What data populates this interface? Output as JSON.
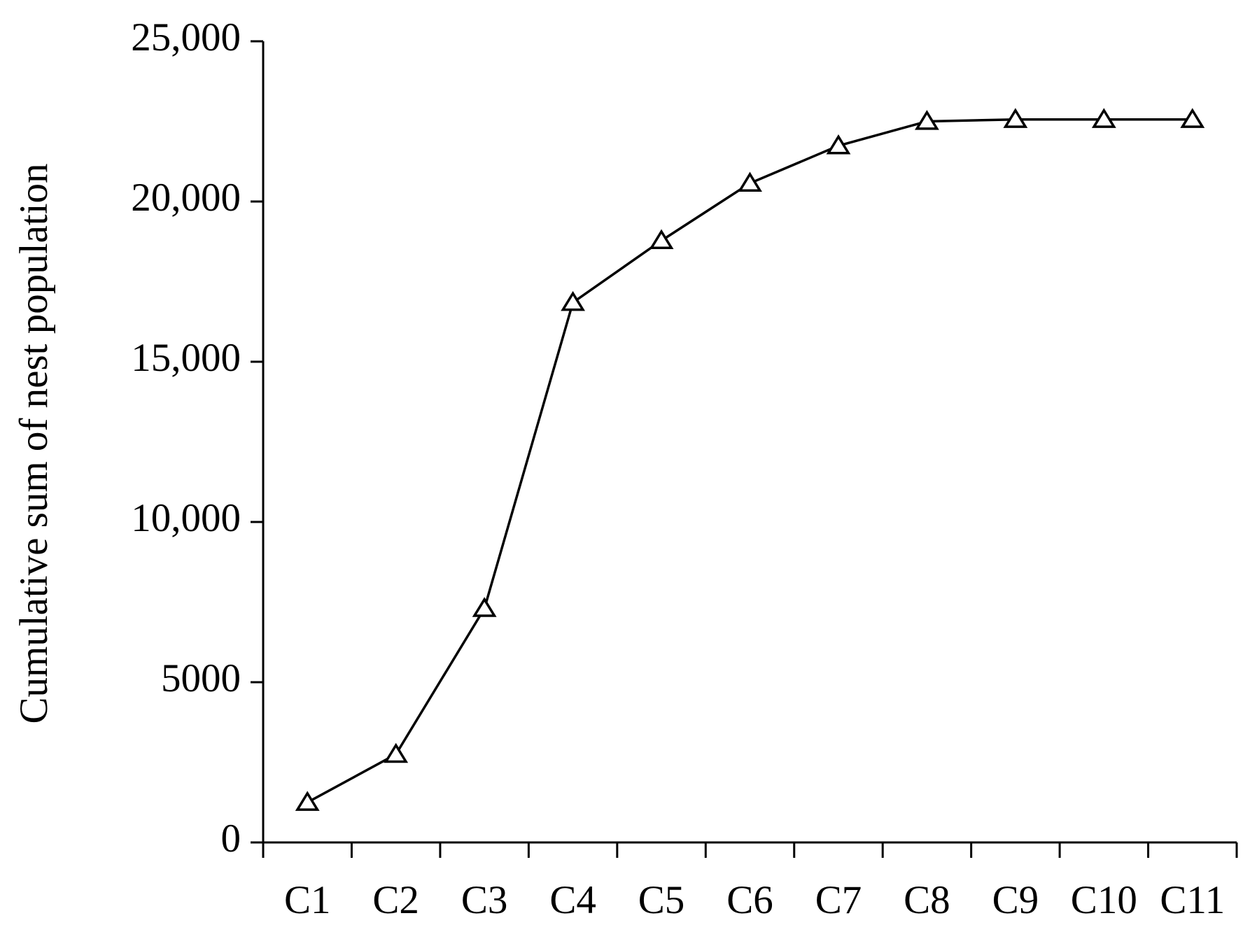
{
  "chart_data": {
    "type": "line",
    "y_label": "Cumulative sum of nest population",
    "categories": [
      "C1",
      "C2",
      "C3",
      "C4",
      "C5",
      "C6",
      "C7",
      "C8",
      "C9",
      "C10",
      "C11"
    ],
    "values": [
      1250,
      2750,
      7300,
      16850,
      18780,
      20570,
      21740,
      22500,
      22560,
      22560,
      22560
    ],
    "color": "#000000",
    "marker": "triangle",
    "ylim": [
      0,
      25000
    ],
    "yticks": [
      0,
      5000,
      {
        "value": 10000,
        "label": "10,000"
      },
      {
        "value": 15000,
        "label": "15,000"
      },
      {
        "value": 20000,
        "label": "20,000"
      },
      {
        "value": 25000,
        "label": "25,000"
      }
    ],
    "grid": false
  }
}
